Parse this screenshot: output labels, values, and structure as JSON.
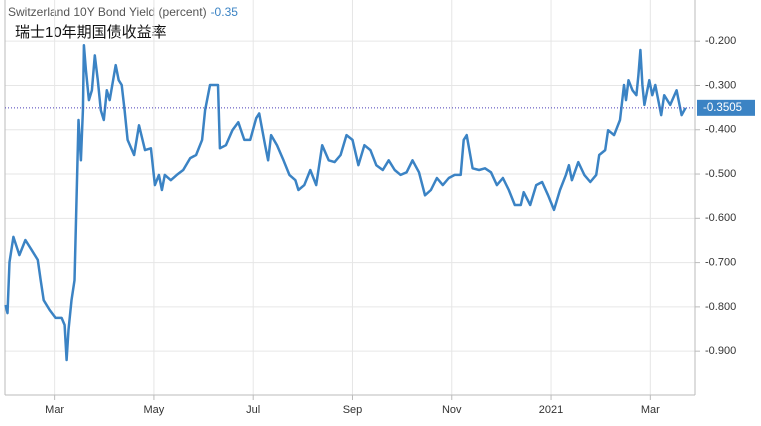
{
  "chart_data": {
    "type": "line",
    "title": "Switzerland 10Y Bond Yield (percent)",
    "headline_value": -0.35,
    "subtitle": "瑞士10年期国债收益率",
    "xlim": [
      1.0,
      14.9
    ],
    "xticks": [
      {
        "value": 2,
        "label": "Mar"
      },
      {
        "value": 4,
        "label": "May"
      },
      {
        "value": 6,
        "label": "Jul"
      },
      {
        "value": 8,
        "label": "Sep"
      },
      {
        "value": 10,
        "label": "Nov"
      },
      {
        "value": 12,
        "label": "2021"
      },
      {
        "value": 14,
        "label": "Mar"
      }
    ],
    "ylim": [
      -0.999,
      -0.107
    ],
    "yticks": [
      {
        "value": -0.2,
        "label": "-0.200"
      },
      {
        "value": -0.3,
        "label": "-0.300"
      },
      {
        "value": -0.4,
        "label": "-0.400"
      },
      {
        "value": -0.5,
        "label": "-0.500"
      },
      {
        "value": -0.6,
        "label": "-0.600"
      },
      {
        "value": -0.7,
        "label": "-0.700"
      },
      {
        "value": -0.8,
        "label": "-0.800"
      },
      {
        "value": -0.9,
        "label": "-0.900"
      }
    ],
    "grid": true,
    "x": [
      1.01,
      1.05,
      1.09,
      1.17,
      1.29,
      1.41,
      1.54,
      1.66,
      1.72,
      1.78,
      1.9,
      2.02,
      2.14,
      2.2,
      2.24,
      2.28,
      2.34,
      2.4,
      2.44,
      2.48,
      2.53,
      2.57,
      2.59,
      2.63,
      2.69,
      2.75,
      2.81,
      2.87,
      2.93,
      2.99,
      3.05,
      3.11,
      3.23,
      3.29,
      3.35,
      3.41,
      3.47,
      3.6,
      3.7,
      3.82,
      3.94,
      4.02,
      4.1,
      4.16,
      4.22,
      4.34,
      4.46,
      4.59,
      4.73,
      4.85,
      4.97,
      5.03,
      5.13,
      5.23,
      5.29,
      5.33,
      5.45,
      5.58,
      5.7,
      5.82,
      5.94,
      6.06,
      6.12,
      6.24,
      6.3,
      6.36,
      6.48,
      6.61,
      6.73,
      6.85,
      6.91,
      7.03,
      7.15,
      7.27,
      7.39,
      7.52,
      7.64,
      7.76,
      7.88,
      8.0,
      8.12,
      8.24,
      8.36,
      8.48,
      8.61,
      8.73,
      8.85,
      8.97,
      9.09,
      9.21,
      9.34,
      9.46,
      9.58,
      9.7,
      9.82,
      9.94,
      10.06,
      10.18,
      10.24,
      10.3,
      10.42,
      10.55,
      10.67,
      10.79,
      10.91,
      11.03,
      11.15,
      11.27,
      11.39,
      11.45,
      11.58,
      11.7,
      11.82,
      11.94,
      12.06,
      12.18,
      12.3,
      12.36,
      12.42,
      12.55,
      12.67,
      12.79,
      12.91,
      12.97,
      13.09,
      13.15,
      13.27,
      13.39,
      13.47,
      13.51,
      13.56,
      13.64,
      13.72,
      13.76,
      13.8,
      13.84,
      13.88,
      13.98,
      14.04,
      14.1,
      14.22,
      14.28,
      14.4,
      14.53,
      14.63,
      14.71
    ],
    "series": [
      {
        "name": "Switzerland 10Y Bond Yield",
        "color": "#3b83c4",
        "values": [
          -0.796,
          -0.814,
          -0.699,
          -0.642,
          -0.683,
          -0.649,
          -0.672,
          -0.694,
          -0.74,
          -0.785,
          -0.807,
          -0.825,
          -0.825,
          -0.841,
          -0.92,
          -0.852,
          -0.785,
          -0.74,
          -0.559,
          -0.378,
          -0.469,
          -0.356,
          -0.209,
          -0.265,
          -0.333,
          -0.311,
          -0.232,
          -0.288,
          -0.356,
          -0.378,
          -0.311,
          -0.333,
          -0.254,
          -0.288,
          -0.299,
          -0.356,
          -0.423,
          -0.457,
          -0.39,
          -0.446,
          -0.442,
          -0.525,
          -0.502,
          -0.536,
          -0.502,
          -0.514,
          -0.502,
          -0.491,
          -0.464,
          -0.457,
          -0.423,
          -0.356,
          -0.299,
          -0.299,
          -0.299,
          -0.442,
          -0.435,
          -0.401,
          -0.383,
          -0.423,
          -0.423,
          -0.374,
          -0.363,
          -0.435,
          -0.469,
          -0.412,
          -0.435,
          -0.469,
          -0.502,
          -0.514,
          -0.536,
          -0.525,
          -0.491,
          -0.525,
          -0.435,
          -0.469,
          -0.473,
          -0.457,
          -0.412,
          -0.423,
          -0.48,
          -0.435,
          -0.446,
          -0.48,
          -0.491,
          -0.469,
          -0.491,
          -0.502,
          -0.496,
          -0.469,
          -0.496,
          -0.548,
          -0.536,
          -0.509,
          -0.525,
          -0.509,
          -0.502,
          -0.502,
          -0.423,
          -0.412,
          -0.487,
          -0.491,
          -0.487,
          -0.496,
          -0.525,
          -0.509,
          -0.536,
          -0.57,
          -0.57,
          -0.541,
          -0.57,
          -0.525,
          -0.518,
          -0.548,
          -0.581,
          -0.536,
          -0.502,
          -0.48,
          -0.514,
          -0.473,
          -0.502,
          -0.518,
          -0.502,
          -0.457,
          -0.446,
          -0.401,
          -0.412,
          -0.378,
          -0.299,
          -0.333,
          -0.288,
          -0.311,
          -0.322,
          -0.277,
          -0.22,
          -0.299,
          -0.344,
          -0.288,
          -0.322,
          -0.299,
          -0.367,
          -0.322,
          -0.344,
          -0.311,
          -0.367,
          -0.3505
        ]
      }
    ]
  }
}
